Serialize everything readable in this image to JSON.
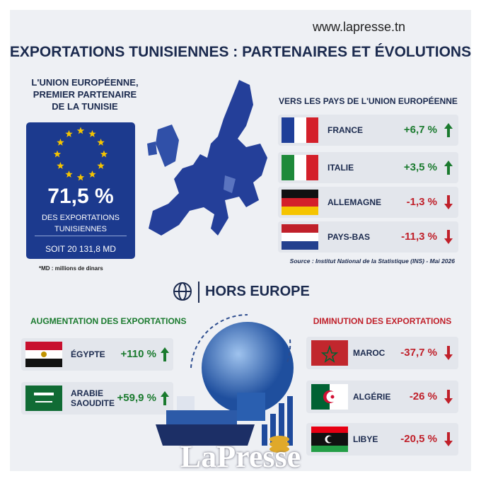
{
  "site": "www.lapresse.tn",
  "title": "EXPORTATIONS TUNISIENNES : PARTENAIRES ET ÉVOLUTIONS",
  "eu_box": {
    "heading": [
      "L'UNION EUROPÉENNE,",
      "PREMIER PARTENAIRE",
      "DE LA TUNISIE"
    ],
    "share": "71,5 %",
    "share_label": [
      "DES EXPORTATIONS",
      "TUNISIENNES"
    ],
    "total": "SOIT 20 131,8 MD",
    "footnote": "*MD : millions de dinars"
  },
  "eu_partners": {
    "heading": "VERS LES PAYS DE L'UNION EUROPÉENNE",
    "rows": [
      {
        "country": "FRANCE",
        "change": "+6,7 %"
      },
      {
        "country": "ITALIE",
        "change": "+3,5 %"
      },
      {
        "country": "ALLEMAGNE",
        "change": "-1,3 %"
      },
      {
        "country": "PAYS-BAS",
        "change": "-11,3 %"
      }
    ]
  },
  "source": "Source : Institut National de la Statistique (INS) - Mai 2026",
  "outside": {
    "heading": "HORS EUROPE"
  },
  "increase": {
    "heading": "AUGMENTATION DES EXPORTATIONS",
    "rows": [
      {
        "country": "ÉGYPTE",
        "change": "+110 %"
      },
      {
        "country": [
          "ARABIE",
          "SAOUDITE"
        ],
        "change": "+59,9 %"
      }
    ]
  },
  "decrease": {
    "heading": "DIMINUTION DES EXPORTATIONS",
    "rows": [
      {
        "country": "MAROC",
        "change": "-37,7 %"
      },
      {
        "country": "ALGÉRIE",
        "change": "-26 %"
      },
      {
        "country": "LIBYE",
        "change": "-20,5 %"
      }
    ]
  },
  "logo": "LaPresse"
}
